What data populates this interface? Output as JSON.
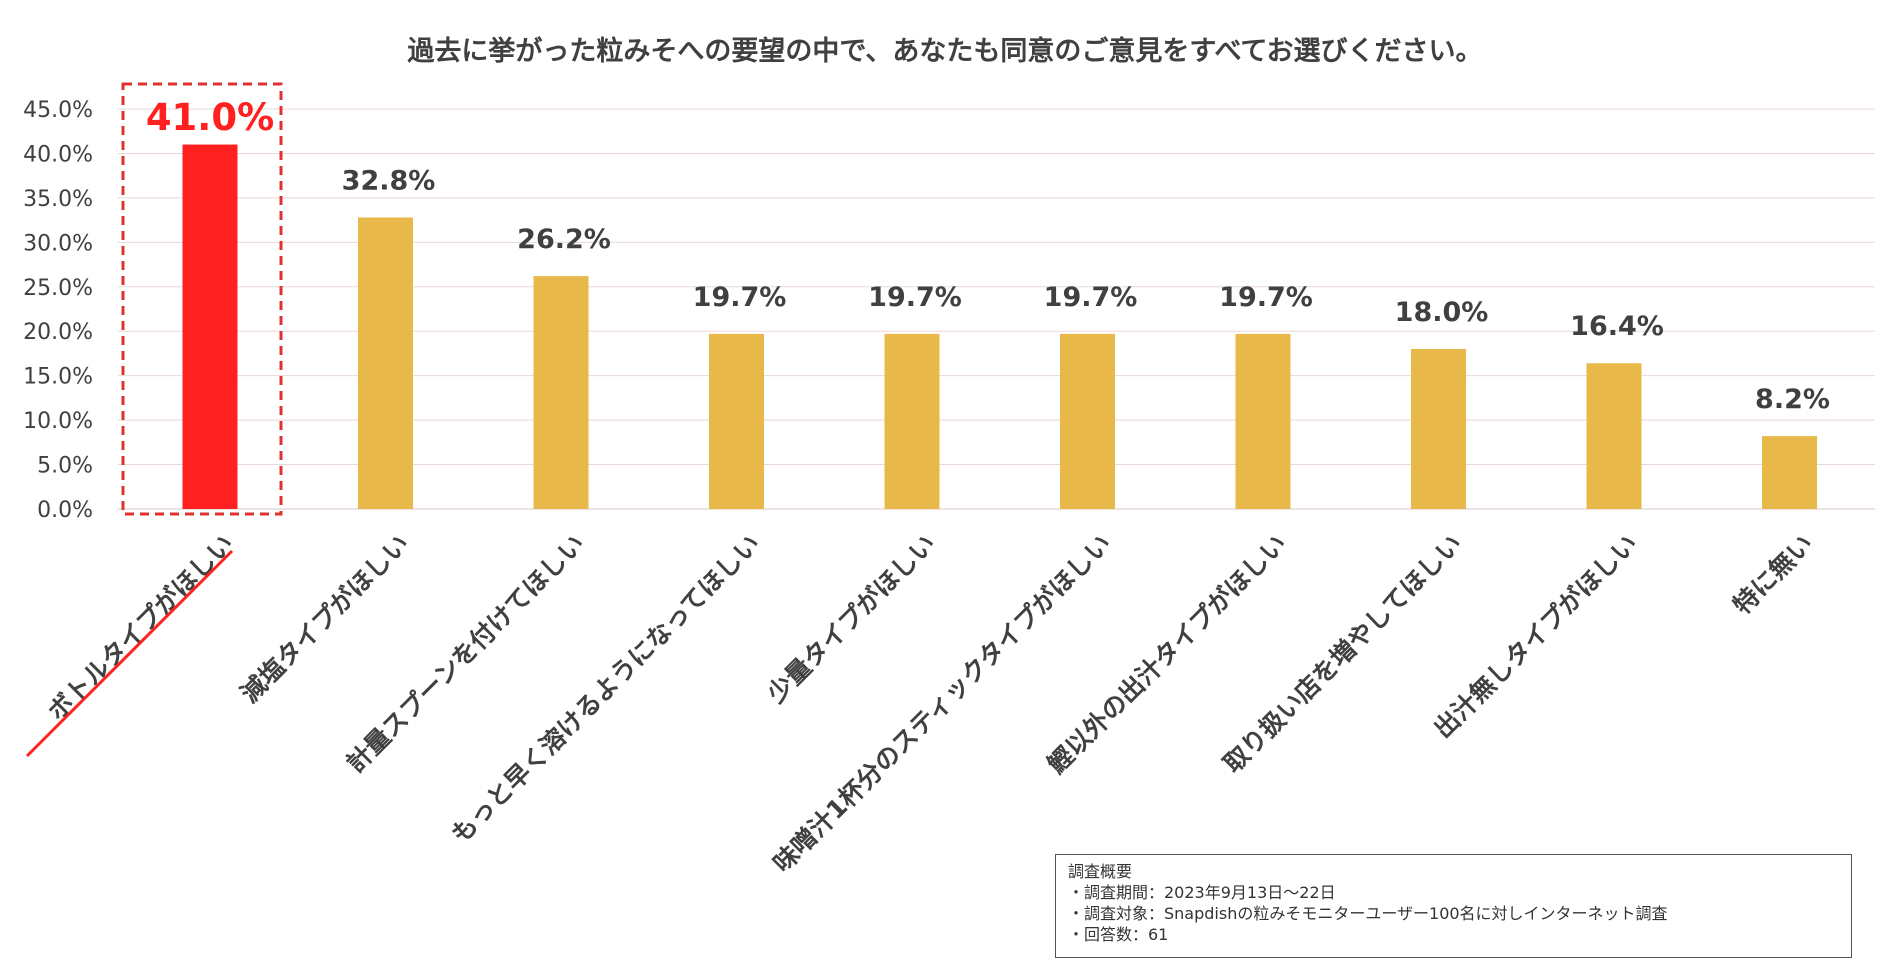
{
  "chart_data": {
    "type": "bar",
    "title": "過去に挙がった粒みそへの要望の中で、あなたも同意のご意見をすべてお選びください。",
    "categories": [
      "ボトルタイプがほしい",
      "減塩タイプがほしい",
      "計量スプーンを付けてほしい",
      "もっと早く溶けるようになってほしい",
      "少量タイプがほしい",
      "味噌汁1杯分のスティックタイプがほしい",
      "鰹以外の出汁タイプがほしい",
      "取り扱い店を増やしてほしい",
      "出汁無しタイプがほしい",
      "特に無い"
    ],
    "values": [
      41.0,
      32.8,
      26.2,
      19.7,
      19.7,
      19.7,
      19.7,
      18.0,
      16.4,
      8.2
    ],
    "value_labels": [
      "41.0%",
      "32.8%",
      "26.2%",
      "19.7%",
      "19.7%",
      "19.7%",
      "19.7%",
      "18.0%",
      "16.4%",
      "8.2%"
    ],
    "ylim": [
      0,
      45
    ],
    "yticks": [
      "0.0%",
      "5.0%",
      "10.0%",
      "15.0%",
      "20.0%",
      "25.0%",
      "30.0%",
      "35.0%",
      "40.0%",
      "45.0%"
    ],
    "grid": true,
    "highlight_index": 0,
    "colors": {
      "bar": "#E8B84B",
      "highlight": "#FF2020",
      "grid": "#E8D8D8",
      "text": "#404040",
      "highlight_box": "#E03030"
    }
  },
  "survey": {
    "heading": "調査概要",
    "lines": [
      "・調査期間：2023年9月13日～22日",
      "・調査対象：Snapdishの粒みそモニターユーザー100名に対しインターネット調査",
      "・回答数：61"
    ]
  }
}
